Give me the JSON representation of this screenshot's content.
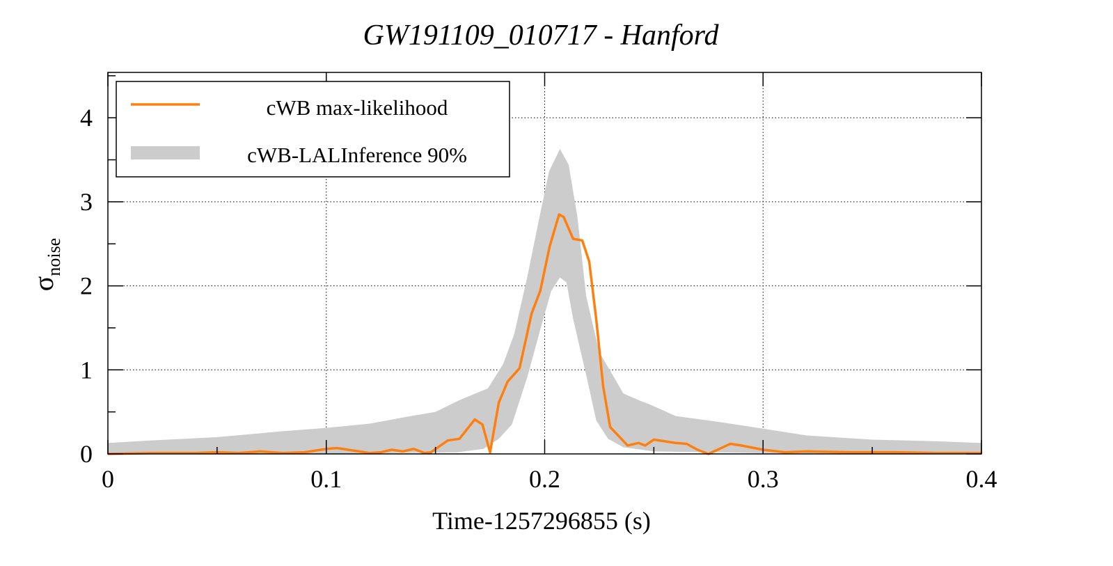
{
  "chart_data": {
    "type": "line",
    "title": "GW191109_010717 - Hanford",
    "xlabel": "Time-1257296855 (s)",
    "ylabel": {
      "symbol": "σ",
      "subscript": "noise"
    },
    "xlim": [
      0,
      0.4
    ],
    "ylim": [
      0,
      4.54
    ],
    "xticks": [
      0,
      0.1,
      0.2,
      0.3,
      0.4
    ],
    "xtick_labels": [
      "0",
      "0.1",
      "0.2",
      "0.3",
      "0.4"
    ],
    "yticks": [
      0,
      1,
      2,
      3,
      4
    ],
    "ytick_labels": [
      "0",
      "1",
      "2",
      "3",
      "4"
    ],
    "grid": true,
    "legend_position": "top-left",
    "colors": {
      "line": "#ff7f0e",
      "band": "#cccccc"
    },
    "series": [
      {
        "name": "cWB max-likelihood",
        "kind": "line",
        "x": [
          0,
          0.02,
          0.04,
          0.05,
          0.06,
          0.07,
          0.08,
          0.09,
          0.1,
          0.105,
          0.11,
          0.115,
          0.12,
          0.125,
          0.13,
          0.135,
          0.14,
          0.145,
          0.148,
          0.1556,
          0.161,
          0.168,
          0.1715,
          0.175,
          0.179,
          0.183,
          0.1885,
          0.194,
          0.198,
          0.2023,
          0.2066,
          0.2087,
          0.213,
          0.2172,
          0.2204,
          0.2236,
          0.2268,
          0.23,
          0.234,
          0.238,
          0.243,
          0.246,
          0.25,
          0.255,
          0.26,
          0.265,
          0.27,
          0.275,
          0.28,
          0.285,
          0.29,
          0.3,
          0.31,
          0.32,
          0.34,
          0.36,
          0.38,
          0.4
        ],
        "y": [
          0.0,
          0.01,
          0.01,
          0.02,
          0.01,
          0.03,
          0.01,
          0.02,
          0.06,
          0.07,
          0.05,
          0.03,
          0.01,
          0.02,
          0.05,
          0.03,
          0.06,
          0.01,
          0.02,
          0.16,
          0.18,
          0.41,
          0.35,
          0.02,
          0.61,
          0.86,
          1.02,
          1.67,
          1.94,
          2.47,
          2.85,
          2.82,
          2.56,
          2.54,
          2.29,
          1.61,
          0.8,
          0.32,
          0.21,
          0.1,
          0.13,
          0.1,
          0.17,
          0.15,
          0.13,
          0.12,
          0.05,
          0.0,
          0.06,
          0.12,
          0.1,
          0.05,
          0.02,
          0.03,
          0.02,
          0.02,
          0.01,
          0.01
        ]
      },
      {
        "name": "cWB-LALInference 90%",
        "kind": "band",
        "upper": {
          "x": [
            0,
            0.02,
            0.05,
            0.08,
            0.1,
            0.12,
            0.1365,
            0.15,
            0.161,
            0.174,
            0.181,
            0.186,
            0.192,
            0.197,
            0.202,
            0.207,
            0.211,
            0.215,
            0.219,
            0.225,
            0.23,
            0.236,
            0.243,
            0.248,
            0.26,
            0.28,
            0.3,
            0.32,
            0.35,
            0.38,
            0.4
          ],
          "y": [
            0.13,
            0.16,
            0.2,
            0.27,
            0.31,
            0.36,
            0.44,
            0.5,
            0.64,
            0.78,
            1.07,
            1.42,
            2.1,
            2.74,
            3.36,
            3.63,
            3.44,
            2.82,
            1.88,
            1.21,
            0.99,
            0.72,
            0.64,
            0.59,
            0.45,
            0.38,
            0.3,
            0.22,
            0.17,
            0.15,
            0.13
          ]
        },
        "lower": {
          "x": [
            0,
            0.1,
            0.16,
            0.172,
            0.179,
            0.185,
            0.192,
            0.198,
            0.203,
            0.207,
            0.21,
            0.213,
            0.219,
            0.2236,
            0.229,
            0.236,
            0.25,
            0.3,
            0.4
          ],
          "y": [
            0.0,
            0.0,
            0.02,
            0.06,
            0.18,
            0.35,
            0.91,
            1.48,
            1.94,
            2.1,
            2.04,
            1.61,
            0.94,
            0.4,
            0.18,
            0.08,
            0.03,
            0.01,
            0.0
          ]
        }
      }
    ]
  }
}
